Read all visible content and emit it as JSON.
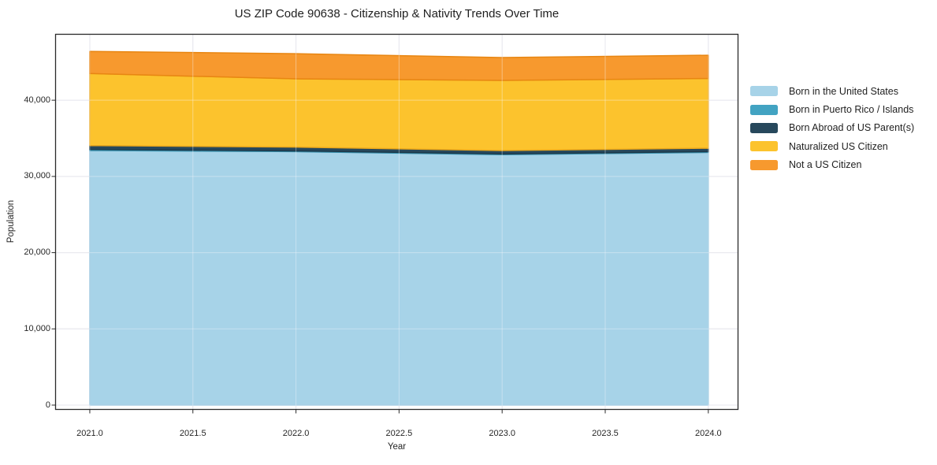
{
  "chart_data": {
    "type": "area",
    "stacked": true,
    "title": "US ZIP Code 90638 - Citizenship & Nativity Trends Over Time",
    "xlabel": "Year",
    "ylabel": "Population",
    "x": [
      2021,
      2022,
      2023,
      2024
    ],
    "series": [
      {
        "name": "Born in the United States",
        "color": "#a7d3e8",
        "edge": "#8ec2dd",
        "values": [
          33400,
          33250,
          32850,
          33150
        ]
      },
      {
        "name": "Born in Puerto Rico / Islands",
        "color": "#42a3c2",
        "edge": "#3790ad",
        "values": [
          150,
          100,
          100,
          100
        ]
      },
      {
        "name": "Born Abroad of US Parent(s)",
        "color": "#27485c",
        "edge": "#1d3a4b",
        "values": [
          500,
          500,
          450,
          450
        ]
      },
      {
        "name": "Naturalized US Citizen",
        "color": "#fcc32d",
        "edge": "#eca81b",
        "values": [
          9450,
          8950,
          9200,
          9150
        ]
      },
      {
        "name": "Not a US Citizen",
        "color": "#f7992e",
        "edge": "#e88612",
        "values": [
          2900,
          3300,
          3000,
          3050
        ]
      }
    ],
    "xticks": [
      2021.0,
      2021.5,
      2022.0,
      2022.5,
      2023.0,
      2023.5,
      2024.0
    ],
    "xtick_labels": [
      "2021.0",
      "2021.5",
      "2022.0",
      "2022.5",
      "2023.0",
      "2023.5",
      "2024.0"
    ],
    "yticks": [
      0,
      10000,
      20000,
      30000,
      40000
    ],
    "ytick_labels": [
      "0",
      "10,000",
      "20,000",
      "30,000",
      "40,000"
    ],
    "xlim": [
      2020.832,
      2024.146
    ],
    "ylim": [
      -620,
      48700
    ],
    "grid": true,
    "legend_position": "right",
    "background_color": "#ffffff",
    "frame_color": "#2a2a2a",
    "grid_color": "#dcdce4",
    "tick_color": "#262626"
  }
}
